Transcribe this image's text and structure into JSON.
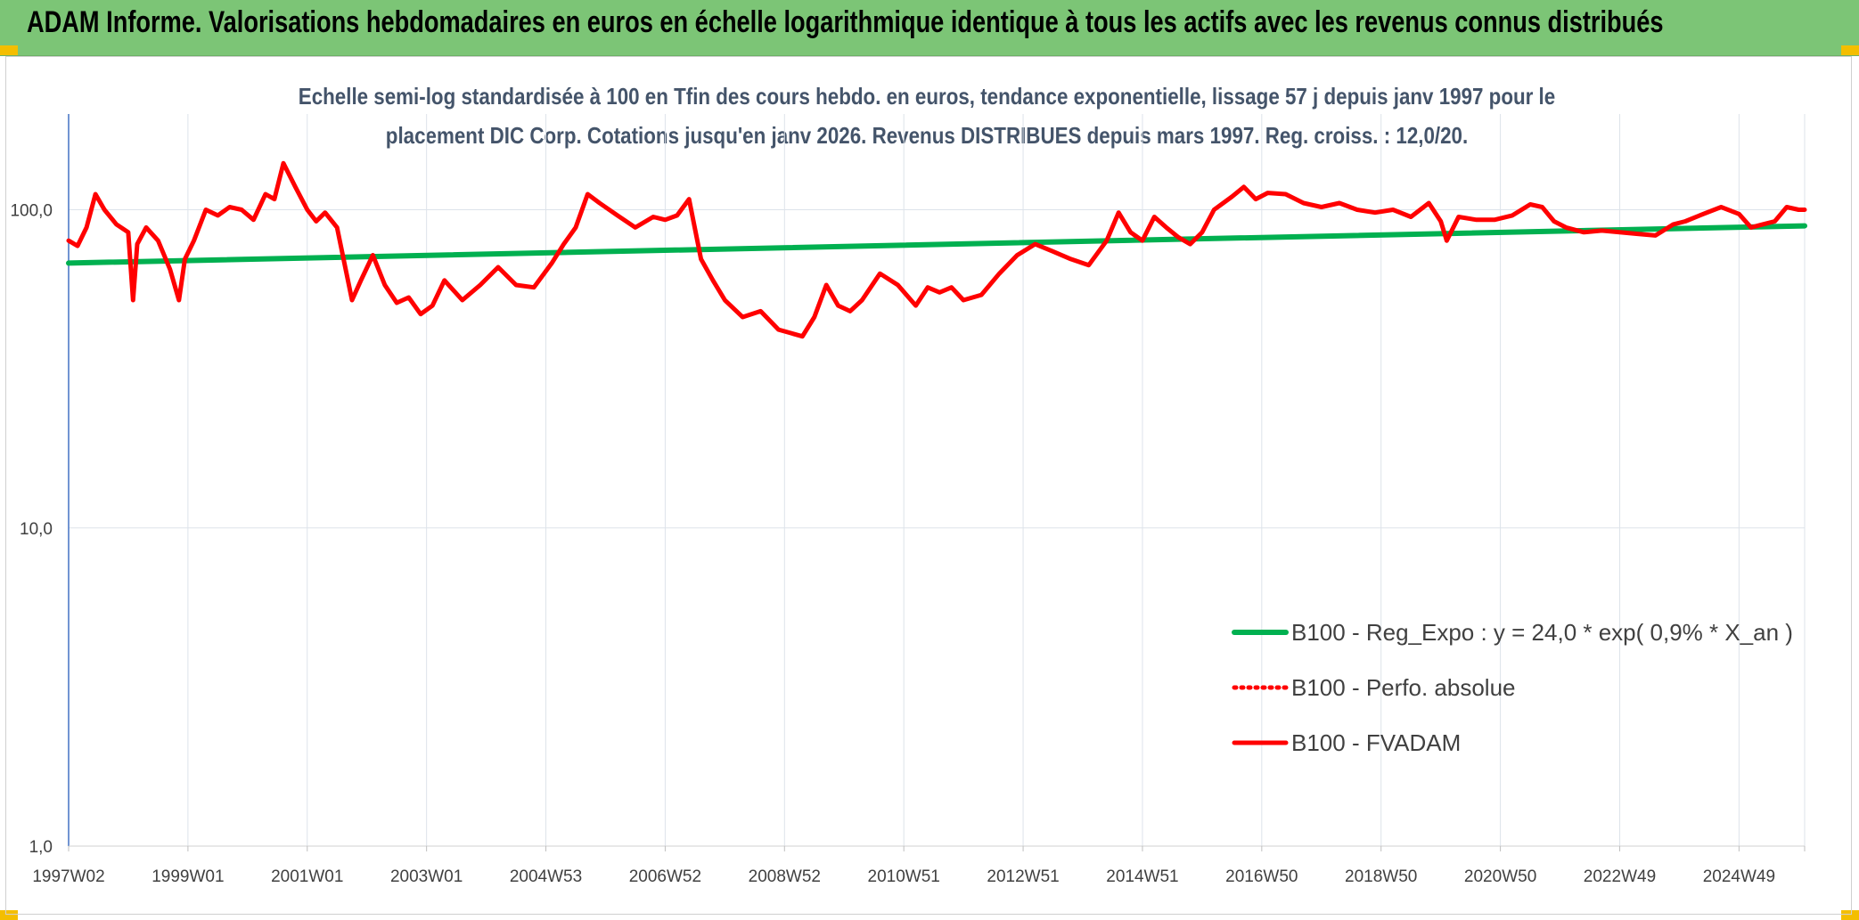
{
  "banner": {
    "title": "ADAM Informe. Valorisations hebdomadaires en euros en échelle logarithmique identique à tous les actifs avec les revenus connus distribués"
  },
  "colors": {
    "banner_bg": "#7cc576",
    "accent_corner": "#f4be00",
    "trend_line": "#00b050",
    "series_line": "#ff0000",
    "text": "#404040",
    "subtitle_text": "#44546a"
  },
  "chart_data": {
    "type": "line",
    "subtitle_line1": "Echelle semi-log standardisée à 100 en Tfin des cours hebdo. en euros, tendance exponentielle, lissage 57 j depuis janv 1997 pour le",
    "subtitle_line2": "placement DIC Corp. Cotations jusqu'en janv 2026. Revenus DISTRIBUES depuis mars 1997. Reg. croiss. : 12,0/20.",
    "y_scale": "log",
    "ylim": [
      1,
      200
    ],
    "grid": true,
    "y_ticks": [
      {
        "value": 1,
        "label": "1,0"
      },
      {
        "value": 10,
        "label": "10,0"
      },
      {
        "value": 100,
        "label": "100,0"
      }
    ],
    "x_range": [
      1997.0,
      2026.1
    ],
    "x_ticks": [
      {
        "label": "1997W02",
        "x": 1997.0
      },
      {
        "label": "1999W01",
        "x": 1999.0
      },
      {
        "label": "2001W01",
        "x": 2001.0
      },
      {
        "label": "2003W01",
        "x": 2003.0
      },
      {
        "label": "2004W53",
        "x": 2005.0
      },
      {
        "label": "2006W52",
        "x": 2007.0
      },
      {
        "label": "2008W52",
        "x": 2009.0
      },
      {
        "label": "2010W51",
        "x": 2011.0
      },
      {
        "label": "2012W51",
        "x": 2013.0
      },
      {
        "label": "2014W51",
        "x": 2015.0
      },
      {
        "label": "2016W50",
        "x": 2017.0
      },
      {
        "label": "2018W50",
        "x": 2019.0
      },
      {
        "label": "2020W50",
        "x": 2021.0
      },
      {
        "label": "2022W49",
        "x": 2023.0
      },
      {
        "label": "2024W49",
        "x": 2025.0
      }
    ],
    "legend_position": "bottom-right",
    "series": [
      {
        "name": "B100 - Reg_Expo : y = 24,0 * exp( 0,9% *  X_an )",
        "style": "solid",
        "color": "#00b050",
        "x": [
          1997.0,
          2026.1
        ],
        "values": [
          68,
          89
        ]
      },
      {
        "name": "B100 - Perfo. absolue",
        "style": "dotted",
        "color": "#ff0000",
        "x": [],
        "values": []
      },
      {
        "name": "B100 - FVADAM",
        "style": "solid",
        "color": "#ff0000",
        "x": [
          1997.0,
          1997.15,
          1997.3,
          1997.45,
          1997.6,
          1997.8,
          1998.0,
          1998.08,
          1998.15,
          1998.3,
          1998.5,
          1998.7,
          1998.85,
          1998.95,
          1999.1,
          1999.3,
          1999.5,
          1999.7,
          1999.9,
          2000.1,
          2000.3,
          2000.45,
          2000.6,
          2000.8,
          2001.0,
          2001.15,
          2001.3,
          2001.5,
          2001.75,
          2001.9,
          2002.1,
          2002.3,
          2002.5,
          2002.7,
          2002.9,
          2003.1,
          2003.3,
          2003.6,
          2003.9,
          2004.2,
          2004.5,
          2004.8,
          2005.1,
          2005.3,
          2005.5,
          2005.7,
          2005.9,
          2006.2,
          2006.5,
          2006.8,
          2007.0,
          2007.2,
          2007.4,
          2007.6,
          2007.8,
          2008.0,
          2008.3,
          2008.6,
          2008.9,
          2009.1,
          2009.3,
          2009.5,
          2009.7,
          2009.9,
          2010.1,
          2010.3,
          2010.6,
          2010.9,
          2011.2,
          2011.4,
          2011.6,
          2011.8,
          2012.0,
          2012.3,
          2012.6,
          2012.9,
          2013.2,
          2013.5,
          2013.8,
          2014.1,
          2014.4,
          2014.6,
          2014.8,
          2015.0,
          2015.2,
          2015.4,
          2015.6,
          2015.8,
          2016.0,
          2016.2,
          2016.5,
          2016.7,
          2016.9,
          2017.1,
          2017.4,
          2017.7,
          2018.0,
          2018.3,
          2018.6,
          2018.9,
          2019.2,
          2019.5,
          2019.8,
          2020.0,
          2020.1,
          2020.3,
          2020.6,
          2020.9,
          2021.2,
          2021.5,
          2021.7,
          2021.9,
          2022.1,
          2022.4,
          2022.7,
          2023.0,
          2023.3,
          2023.6,
          2023.9,
          2024.1,
          2024.4,
          2024.7,
          2025.0,
          2025.2,
          2025.4,
          2025.6,
          2025.8,
          2026.0,
          2026.1
        ],
        "values": [
          80,
          77,
          88,
          112,
          100,
          90,
          85,
          52,
          78,
          88,
          80,
          65,
          52,
          70,
          80,
          100,
          96,
          102,
          100,
          93,
          112,
          108,
          140,
          118,
          100,
          92,
          98,
          88,
          52,
          60,
          72,
          58,
          51,
          53,
          47,
          50,
          60,
          52,
          58,
          66,
          58,
          57,
          68,
          78,
          88,
          112,
          105,
          96,
          88,
          95,
          93,
          96,
          108,
          70,
          60,
          52,
          46,
          48,
          42,
          41,
          40,
          46,
          58,
          50,
          48,
          52,
          63,
          58,
          50,
          57,
          55,
          57,
          52,
          54,
          63,
          72,
          78,
          74,
          70,
          67,
          80,
          98,
          85,
          80,
          95,
          88,
          82,
          78,
          85,
          100,
          110,
          118,
          108,
          113,
          112,
          105,
          102,
          105,
          100,
          98,
          100,
          95,
          105,
          92,
          80,
          95,
          93,
          93,
          96,
          104,
          102,
          92,
          88,
          85,
          86,
          85,
          84,
          83,
          90,
          92,
          97,
          102,
          97,
          88,
          90,
          92,
          102,
          100,
          100
        ]
      }
    ]
  }
}
